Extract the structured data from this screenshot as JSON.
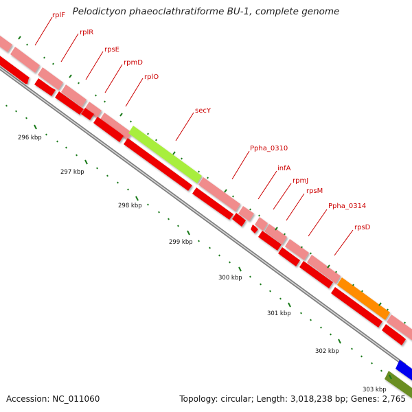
{
  "title": "Pelodictyon phaeoclathratiforme BU-1, complete genome",
  "accession": "Accession: NC_011060",
  "stats": "Topology: circular; Length: 3,018,238 bp; Genes: 2,765",
  "genes": [
    "rplF",
    "rplR",
    "rpsE",
    "rpmD",
    "rplO",
    "secY",
    "Ppha_0310",
    "infA",
    "rpmJ",
    "rpsM",
    "Ppha_0314",
    "rpsD"
  ],
  "scale_labels": [
    "296 kbp",
    "297 kbp",
    "298 kbp",
    "299 kbp",
    "300 kbp",
    "301 kbp",
    "302 kbp",
    "303 kbp"
  ],
  "colors": {
    "gene_light": "#f08c8c",
    "gene_dark": "#ee0000",
    "secY": "#a8ee3c",
    "orange_gene": "#ff8c00",
    "blue_gene": "#0000ee",
    "olive_gene": "#6b8e23",
    "tick": "#1a7a1a",
    "label": "#cc0000"
  }
}
